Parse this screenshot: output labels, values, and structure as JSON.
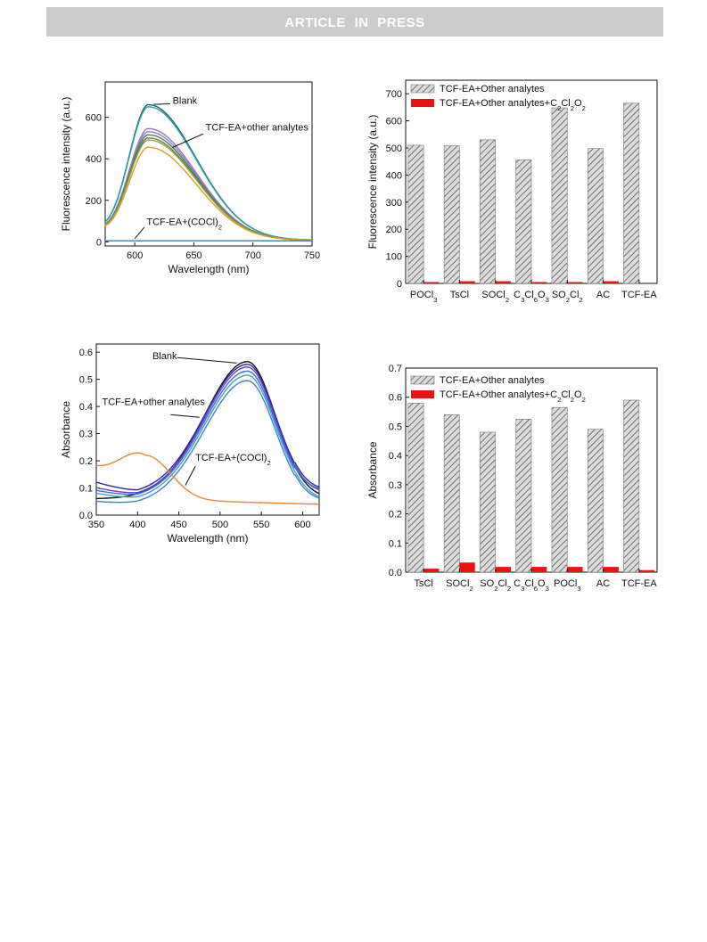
{
  "header": {
    "banner": "ARTICLE  IN  PRESS"
  },
  "chart_data": [
    {
      "type": "line",
      "xlabel": "Wavelength (nm)",
      "ylabel": "Fluorescence intensity (a.u.)",
      "xlim": [
        575,
        750
      ],
      "ylim": [
        -20,
        770
      ],
      "xticks": [
        600,
        650,
        700,
        750
      ],
      "yticks": [
        0,
        200,
        400,
        600
      ],
      "grid": false,
      "annotations": [
        {
          "text": "Blank",
          "x": 632,
          "y": 665
        },
        {
          "text": "TCF-EA+other analytes",
          "x": 660,
          "y": 535
        },
        {
          "text": "TCF-EA+(COCl)",
          "sub": "2",
          "x": 610,
          "y": 80
        }
      ],
      "series": [
        {
          "peak": 660,
          "color": "#1f5f7a"
        },
        {
          "peak": 650,
          "color": "#2aa5a0"
        },
        {
          "peak": 545,
          "color": "#a070c0"
        },
        {
          "peak": 530,
          "color": "#7090c0"
        },
        {
          "peak": 515,
          "color": "#6a6a6a"
        },
        {
          "peak": 500,
          "color": "#4a8a3a"
        },
        {
          "peak": 490,
          "color": "#a0a040"
        },
        {
          "peak": 455,
          "color": "#d4a020"
        },
        {
          "peak": 0,
          "color": "#3a7ab8",
          "flat": 5
        }
      ],
      "series_shape": {
        "center": 612,
        "left_width": 17,
        "right_width": 40,
        "left_base": 35,
        "right_base": 8
      }
    },
    {
      "type": "bar",
      "ylabel": "Fluorescence intensity (a.u.)",
      "xlabel": "",
      "ylim": [
        0,
        750
      ],
      "yticks": [
        0,
        100,
        200,
        300,
        400,
        500,
        600,
        700
      ],
      "categories": [
        "POCl3",
        "TsCl",
        "SOCl2",
        "C3Cl6O3",
        "SO2Cl2",
        "AC",
        "TCF-EA"
      ],
      "category_labels": [
        [
          [
            "POCl",
            ""
          ],
          [
            "3",
            "sub"
          ]
        ],
        [
          [
            "TsCl",
            ""
          ]
        ],
        [
          [
            "SOCl",
            ""
          ],
          [
            "2",
            "sub"
          ]
        ],
        [
          [
            "C",
            ""
          ],
          [
            "3",
            "sub"
          ],
          [
            "Cl",
            ""
          ],
          [
            "6",
            "sub"
          ],
          [
            "O",
            ""
          ],
          [
            "3",
            "sub"
          ]
        ],
        [
          [
            "SO",
            ""
          ],
          [
            "2",
            "sub"
          ],
          [
            "Cl",
            ""
          ],
          [
            "2",
            "sub"
          ]
        ],
        [
          [
            "AC",
            ""
          ]
        ],
        [
          [
            "TCF-EA",
            ""
          ]
        ]
      ],
      "series": [
        {
          "name": "TCF-EA+Other analytes",
          "values": [
            510,
            508,
            530,
            456,
            648,
            498,
            665
          ],
          "pattern": "hatch"
        },
        {
          "name": "TCF-EA+Other analytes+C2Cl2O2",
          "values": [
            5,
            8,
            8,
            5,
            5,
            8,
            0
          ],
          "color": "#ee1111"
        }
      ],
      "legend": {
        "entries": [
          [
            [
              "TCF-EA+Other analytes",
              ""
            ]
          ],
          [
            [
              "TCF-EA+Other analytes+C",
              ""
            ],
            [
              "2",
              "sub"
            ],
            [
              "Cl",
              ""
            ],
            [
              "2",
              "sub"
            ],
            [
              "O",
              ""
            ],
            [
              "2",
              "sub"
            ]
          ]
        ],
        "position": "top-left"
      }
    },
    {
      "type": "line",
      "xlabel": "Wavelength (nm)",
      "ylabel": "Absorbance",
      "xlim": [
        350,
        620
      ],
      "ylim": [
        0,
        0.63
      ],
      "xticks": [
        350,
        400,
        450,
        500,
        550,
        600
      ],
      "yticks": [
        0.0,
        0.1,
        0.2,
        0.3,
        0.4,
        0.5,
        0.6
      ],
      "ytick_labels": [
        "0.0",
        "0.1",
        "0.2",
        "0.3",
        "0.4",
        "0.5",
        "0.6"
      ],
      "grid": false,
      "annotations": [
        {
          "text": "Blank",
          "x": 418,
          "y": 0.575
        },
        {
          "text": "TCF-EA+other analytes",
          "x": 357,
          "y": 0.405
        },
        {
          "text": "TCF-EA+(COCl)",
          "sub": "2",
          "x": 470,
          "y": 0.2
        }
      ],
      "series": [
        {
          "color": "#111111",
          "peak": 0.565,
          "base_left": 0.06,
          "base_right": 0.06,
          "dip": 0.06
        },
        {
          "color": "#2a2a9a",
          "peak": 0.555,
          "base_left": 0.12,
          "base_right": 0.08,
          "dip": 0.075
        },
        {
          "color": "#6a3ad0",
          "peak": 0.545,
          "base_left": 0.1,
          "base_right": 0.07,
          "dip": 0.065
        },
        {
          "color": "#3a6ae0",
          "peak": 0.53,
          "base_left": 0.09,
          "base_right": 0.07,
          "dip": 0.06
        },
        {
          "color": "#40a0c0",
          "peak": 0.515,
          "base_left": 0.08,
          "base_right": 0.05,
          "dip": 0.05
        },
        {
          "color": "#3a80e0",
          "peak": 0.495,
          "base_left": 0.05,
          "base_right": 0.04,
          "dip": 0.035
        },
        {
          "color": "#e08a30",
          "orange": true
        }
      ]
    },
    {
      "type": "bar",
      "ylabel": "Absorbance",
      "xlabel": "",
      "ylim": [
        0,
        0.7
      ],
      "yticks": [
        0.0,
        0.1,
        0.2,
        0.3,
        0.4,
        0.5,
        0.6,
        0.7
      ],
      "ytick_labels": [
        "0.0",
        "0.1",
        "0.2",
        "0.3",
        "0.4",
        "0.5",
        "0.6",
        "0.7"
      ],
      "categories": [
        "TsCl",
        "SOCl2",
        "SO2Cl2",
        "C3Cl6O3",
        "POCl3",
        "AC",
        "TCF-EA"
      ],
      "category_labels": [
        [
          [
            "TsCl",
            ""
          ]
        ],
        [
          [
            "SOCl",
            ""
          ],
          [
            "2",
            "sub"
          ]
        ],
        [
          [
            "SO",
            ""
          ],
          [
            "2",
            "sub"
          ],
          [
            "Cl",
            ""
          ],
          [
            "2",
            "sub"
          ]
        ],
        [
          [
            "C",
            ""
          ],
          [
            "3",
            "sub"
          ],
          [
            "Cl",
            ""
          ],
          [
            "6",
            "sub"
          ],
          [
            "O",
            ""
          ],
          [
            "3",
            "sub"
          ]
        ],
        [
          [
            "POCl",
            ""
          ],
          [
            "3",
            "sub"
          ]
        ],
        [
          [
            "AC",
            ""
          ]
        ],
        [
          [
            "TCF-EA",
            ""
          ]
        ]
      ],
      "series": [
        {
          "name": "TCF-EA+Other analytes",
          "values": [
            0.58,
            0.54,
            0.48,
            0.525,
            0.565,
            0.49,
            0.59
          ],
          "pattern": "hatch"
        },
        {
          "name": "TCF-EA+Other analytes+C2Cl2O2",
          "values": [
            0.012,
            0.033,
            0.018,
            0.018,
            0.018,
            0.018,
            0.007
          ],
          "color": "#ee1111"
        }
      ],
      "legend": {
        "entries": [
          [
            [
              "TCF-EA+Other analytes",
              ""
            ]
          ],
          [
            [
              "TCF-EA+Other analytes+C",
              ""
            ],
            [
              "2",
              "sub"
            ],
            [
              "Cl",
              ""
            ],
            [
              "2",
              "sub"
            ],
            [
              "O",
              ""
            ],
            [
              "2",
              "sub"
            ]
          ]
        ],
        "position": "top-left"
      }
    }
  ]
}
